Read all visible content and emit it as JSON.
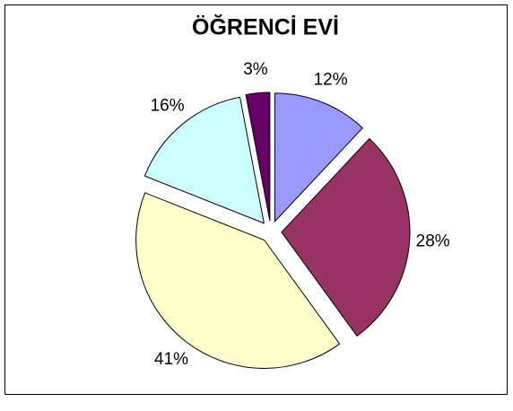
{
  "chart_data": {
    "type": "pie",
    "title": "ÖĞRENCİ EVİ",
    "values": [
      12,
      28,
      41,
      16,
      3
    ],
    "value_labels": [
      "12%",
      "28%",
      "41%",
      "16%",
      "3%"
    ],
    "colors": [
      "#9999ff",
      "#993366",
      "#ffffcc",
      "#ccffff",
      "#660066"
    ]
  }
}
